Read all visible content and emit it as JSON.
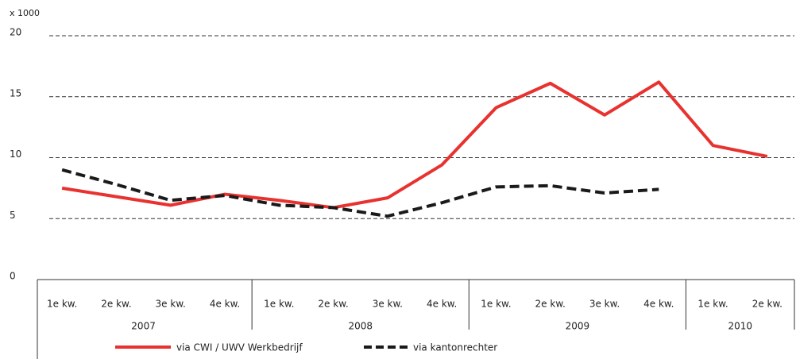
{
  "chart_data": {
    "type": "line",
    "y_unit": "x 1000",
    "categories": [
      "1e kw.",
      "2e kw.",
      "3e kw.",
      "4e kw.",
      "1e kw.",
      "2e kw.",
      "3e kw.",
      "4e kw.",
      "1e kw.",
      "2e kw.",
      "3e kw.",
      "4e kw.",
      "1e kw.",
      "2e kw."
    ],
    "groups": [
      {
        "label": "2007",
        "size": 4
      },
      {
        "label": "2008",
        "size": 4
      },
      {
        "label": "2009",
        "size": 4
      },
      {
        "label": "2010",
        "size": 2
      }
    ],
    "series": [
      {
        "name": "via CWI / UWV Werkbedrijf",
        "color": "#e8322f",
        "dashed": false,
        "values": [
          7.5,
          6.8,
          6.1,
          7.0,
          6.5,
          5.9,
          6.7,
          9.4,
          14.1,
          16.1,
          13.5,
          16.2,
          11.0,
          10.1
        ]
      },
      {
        "name": "via kantonrechter",
        "color": "#1a1a1a",
        "dashed": true,
        "values": [
          9.0,
          7.8,
          6.5,
          6.9,
          6.1,
          5.9,
          5.2,
          6.3,
          7.6,
          7.7,
          7.1,
          7.4,
          null,
          null
        ]
      }
    ],
    "ylim": [
      0,
      20
    ],
    "yticks": [
      0,
      5,
      10,
      15,
      20
    ],
    "grid": true
  }
}
